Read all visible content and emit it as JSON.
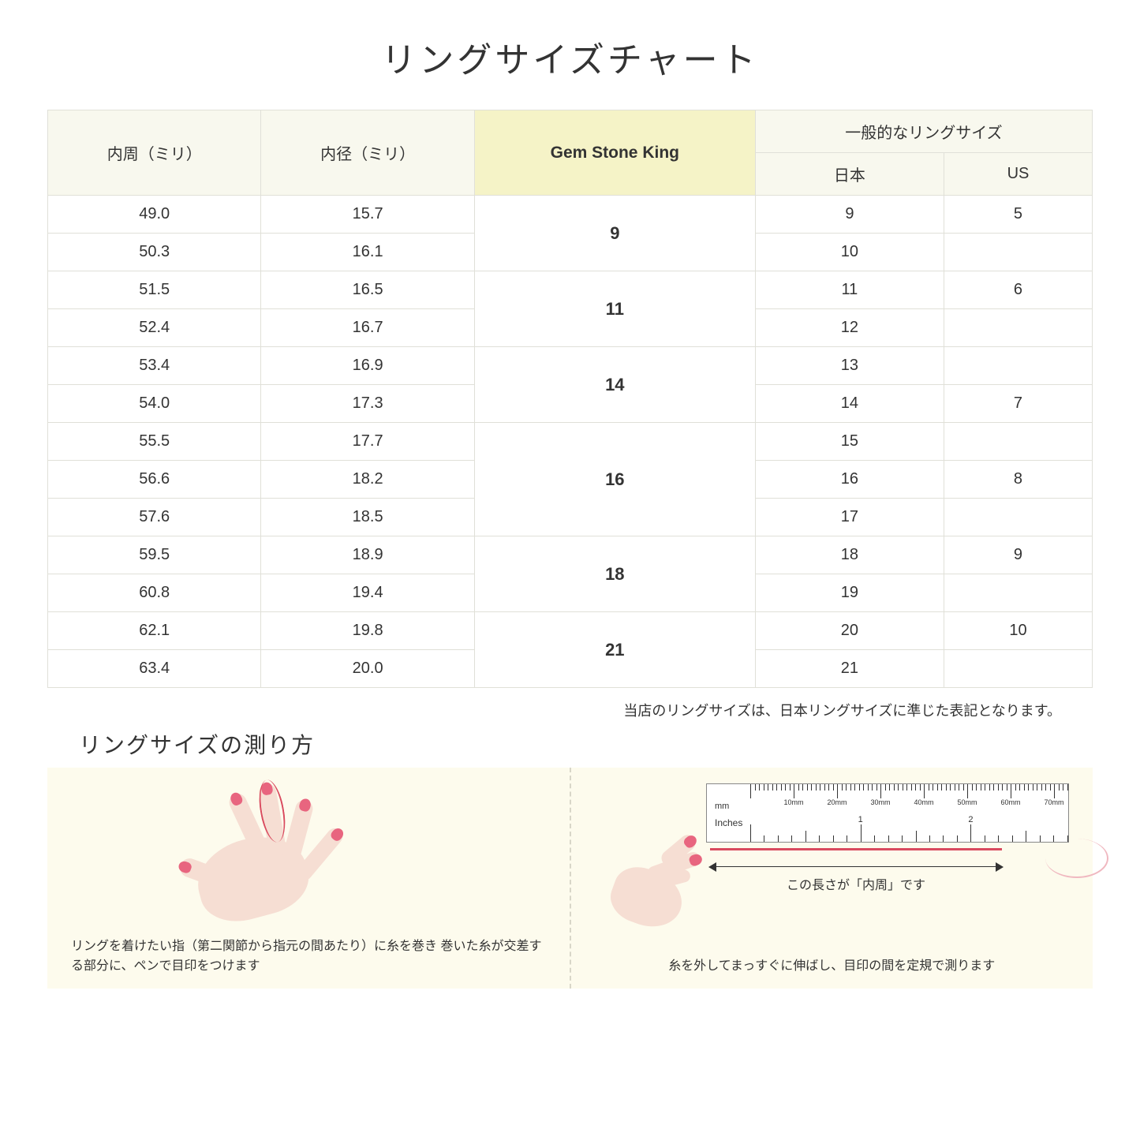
{
  "title": "リングサイズチャート",
  "headers": {
    "circumference": "内周（ミリ）",
    "diameter": "内径（ミリ）",
    "gsk": "Gem Stone King",
    "general": "一般的なリングサイズ",
    "japan": "日本",
    "us": "US"
  },
  "rows": [
    {
      "circ": "49.0",
      "dia": "15.7",
      "jp": "9",
      "us": "5"
    },
    {
      "circ": "50.3",
      "dia": "16.1",
      "jp": "10",
      "us": ""
    },
    {
      "circ": "51.5",
      "dia": "16.5",
      "jp": "11",
      "us": "6"
    },
    {
      "circ": "52.4",
      "dia": "16.7",
      "jp": "12",
      "us": ""
    },
    {
      "circ": "53.4",
      "dia": "16.9",
      "jp": "13",
      "us": ""
    },
    {
      "circ": "54.0",
      "dia": "17.3",
      "jp": "14",
      "us": "7"
    },
    {
      "circ": "55.5",
      "dia": "17.7",
      "jp": "15",
      "us": ""
    },
    {
      "circ": "56.6",
      "dia": "18.2",
      "jp": "16",
      "us": "8"
    },
    {
      "circ": "57.6",
      "dia": "18.5",
      "jp": "17",
      "us": ""
    },
    {
      "circ": "59.5",
      "dia": "18.9",
      "jp": "18",
      "us": "9"
    },
    {
      "circ": "60.8",
      "dia": "19.4",
      "jp": "19",
      "us": ""
    },
    {
      "circ": "62.1",
      "dia": "19.8",
      "jp": "20",
      "us": "10"
    },
    {
      "circ": "63.4",
      "dia": "20.0",
      "jp": "21",
      "us": ""
    }
  ],
  "gsk_groups": [
    {
      "label": "9",
      "span": 2
    },
    {
      "label": "11",
      "span": 2
    },
    {
      "label": "14",
      "span": 2
    },
    {
      "label": "16",
      "span": 3
    },
    {
      "label": "18",
      "span": 2
    },
    {
      "label": "21",
      "span": 2
    }
  ],
  "note": "当店のリングサイズは、日本リングサイズに準じた表記となります。",
  "howto_title": "リングサイズの測り方",
  "inst_left": "リングを着けたい指（第二関節から指元の間あたり）に糸を巻き\n巻いた糸が交差する部分に、ペンで目印をつけます",
  "inst_right": "糸を外してまっすぐに伸ばし、目印の間を定規で測ります",
  "arrow_label": "この長さが「内周」です",
  "ruler": {
    "mm_label": "mm",
    "in_label": "Inches",
    "mm_marks": [
      "10mm",
      "20mm",
      "30mm",
      "40mm",
      "50mm",
      "60mm",
      "70mm"
    ],
    "in_marks": [
      "1",
      "2"
    ]
  },
  "colors": {
    "header_bg": "#f8f8ee",
    "gsk_bg": "#f5f3c7",
    "border": "#e0e0d8",
    "instruction_bg": "#fdfbed",
    "skin": "#f6ded3",
    "nail": "#e8657f",
    "thread": "#d94a5e"
  }
}
